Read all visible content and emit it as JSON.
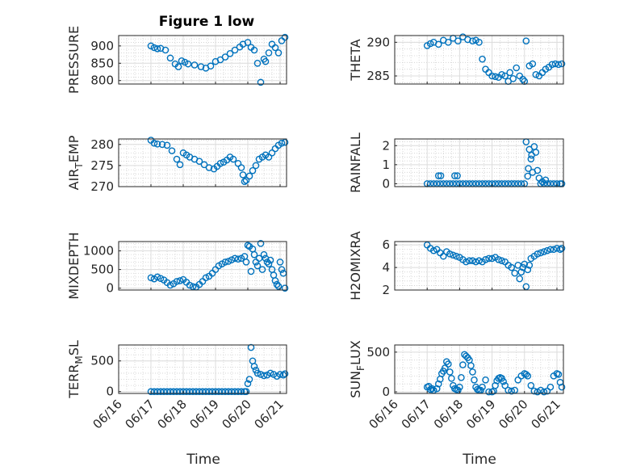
{
  "figure": {
    "title": "Figure 1 low",
    "xlabel": "Time",
    "x_ticks": [
      "06/16",
      "06/17",
      "06/18",
      "06/19",
      "06/20",
      "06/21"
    ],
    "marker_color": "#0072BD",
    "axis_color": "#262626",
    "grid_color": "#d9d9d9"
  },
  "chart_data": [
    {
      "type": "scatter",
      "id": "pressure",
      "ylabel": "PRESSURE",
      "ylim": [
        790,
        930
      ],
      "yticks": [
        800,
        850,
        900
      ],
      "ytick_labels": [
        "800",
        "850",
        "900"
      ],
      "xlim": [
        0,
        5.2
      ],
      "grid": true,
      "x": [
        1.0,
        1.1,
        1.2,
        1.3,
        1.45,
        1.6,
        1.75,
        1.85,
        1.95,
        2.05,
        2.15,
        2.35,
        2.55,
        2.7,
        2.85,
        3.0,
        3.15,
        3.3,
        3.45,
        3.6,
        3.75,
        3.85,
        4.0,
        4.1,
        4.2,
        4.3,
        4.4,
        4.5,
        4.55,
        4.65,
        4.75,
        4.85,
        4.95,
        5.05,
        5.15
      ],
      "y": [
        900,
        895,
        892,
        893,
        888,
        865,
        848,
        840,
        857,
        853,
        848,
        845,
        840,
        836,
        842,
        855,
        860,
        868,
        878,
        888,
        897,
        905,
        910,
        896,
        888,
        850,
        795,
        862,
        855,
        880,
        905,
        895,
        880,
        915,
        925
      ]
    },
    {
      "type": "scatter",
      "id": "theta",
      "ylabel": "THETA",
      "ylim": [
        283.8,
        291
      ],
      "yticks": [
        285,
        290
      ],
      "ytick_labels": [
        "285",
        "290"
      ],
      "xlim": [
        0,
        5.2
      ],
      "grid": true,
      "x": [
        1.0,
        1.1,
        1.2,
        1.35,
        1.5,
        1.65,
        1.8,
        1.95,
        2.1,
        2.25,
        2.4,
        2.5,
        2.6,
        2.7,
        2.8,
        2.9,
        3.0,
        3.1,
        3.2,
        3.3,
        3.4,
        3.5,
        3.55,
        3.65,
        3.75,
        3.85,
        3.95,
        4.0,
        4.05,
        4.15,
        4.25,
        4.35,
        4.45,
        4.55,
        4.65,
        4.75,
        4.85,
        4.95,
        5.05,
        5.15
      ],
      "y": [
        289.5,
        289.8,
        290.0,
        289.7,
        290.3,
        290.0,
        290.6,
        290.2,
        290.8,
        290.4,
        290.2,
        290.3,
        290.0,
        287.5,
        286.0,
        285.5,
        285.0,
        284.9,
        284.8,
        285.2,
        285.0,
        284.2,
        285.5,
        284.6,
        286.2,
        285.0,
        284.5,
        284.2,
        290.2,
        286.5,
        286.8,
        285.2,
        285.0,
        285.5,
        286.0,
        286.3,
        286.7,
        286.8,
        286.7,
        286.8
      ]
    },
    {
      "type": "scatter",
      "id": "air_temp",
      "ylabel": "AIRTEMP",
      "ylabel_parts": [
        "AIR",
        "T",
        "EMP"
      ],
      "ylim": [
        270,
        281.3
      ],
      "yticks": [
        270,
        275,
        280
      ],
      "ytick_labels": [
        "270",
        "275",
        "280"
      ],
      "xlim": [
        0,
        5.2
      ],
      "grid": true,
      "x": [
        1.0,
        1.1,
        1.2,
        1.35,
        1.5,
        1.65,
        1.8,
        1.9,
        2.0,
        2.1,
        2.2,
        2.35,
        2.5,
        2.65,
        2.8,
        2.95,
        3.05,
        3.15,
        3.25,
        3.35,
        3.45,
        3.55,
        3.7,
        3.8,
        3.85,
        3.9,
        3.95,
        4.05,
        4.15,
        4.25,
        4.35,
        4.45,
        4.55,
        4.65,
        4.75,
        4.85,
        4.95,
        5.05,
        5.15
      ],
      "y": [
        281.0,
        280.3,
        280.1,
        280.0,
        279.8,
        278.5,
        276.5,
        275.2,
        278.0,
        277.5,
        277.0,
        276.5,
        276.0,
        275.2,
        274.5,
        274.2,
        274.8,
        275.5,
        275.8,
        276.3,
        277.0,
        276.5,
        275.5,
        274.5,
        272.8,
        271.2,
        271.5,
        272.5,
        273.8,
        275.0,
        276.5,
        277.0,
        277.5,
        277.0,
        278.0,
        279.0,
        279.8,
        280.3,
        280.5
      ]
    },
    {
      "type": "scatter",
      "id": "rainfall",
      "ylabel": "RAINFALL",
      "ylim": [
        -0.15,
        2.35
      ],
      "yticks": [
        0,
        1,
        2
      ],
      "ytick_labels": [
        "0",
        "1",
        "2"
      ],
      "xlim": [
        0,
        5.2
      ],
      "grid": true,
      "x": [
        1.0,
        1.1,
        1.2,
        1.3,
        1.4,
        1.5,
        1.6,
        1.7,
        1.8,
        1.9,
        2.0,
        2.1,
        2.2,
        2.3,
        2.4,
        2.5,
        2.6,
        2.7,
        2.8,
        2.9,
        3.0,
        3.1,
        3.2,
        3.3,
        3.4,
        3.5,
        3.6,
        3.7,
        3.8,
        3.9,
        1.35,
        1.42,
        1.85,
        1.93,
        4.0,
        4.05,
        4.1,
        4.12,
        4.15,
        4.2,
        4.22,
        4.25,
        4.3,
        4.35,
        4.4,
        4.45,
        4.5,
        4.55,
        4.6,
        4.65,
        4.7,
        4.8,
        4.9,
        5.0,
        5.1,
        5.15
      ],
      "y": [
        0,
        0,
        0,
        0,
        0,
        0,
        0,
        0,
        0,
        0,
        0,
        0,
        0,
        0,
        0,
        0,
        0,
        0,
        0,
        0,
        0,
        0,
        0,
        0,
        0,
        0,
        0,
        0,
        0,
        0,
        0.42,
        0.42,
        0.42,
        0.42,
        0,
        2.2,
        0.4,
        0.8,
        1.8,
        1.3,
        1.5,
        0.6,
        1.95,
        1.65,
        0.7,
        0.3,
        0,
        0.1,
        0,
        0.2,
        0,
        0,
        0,
        0,
        0,
        0
      ]
    },
    {
      "type": "scatter",
      "id": "mixdepth",
      "ylabel": "MIXDEPTH",
      "ylim": [
        -50,
        1250
      ],
      "yticks": [
        0,
        500,
        1000
      ],
      "ytick_labels": [
        "0",
        "500",
        "1000"
      ],
      "xlim": [
        0,
        5.2
      ],
      "grid": true,
      "x": [
        1.0,
        1.1,
        1.2,
        1.3,
        1.4,
        1.5,
        1.6,
        1.7,
        1.8,
        1.9,
        2.0,
        2.1,
        2.2,
        2.3,
        2.4,
        2.5,
        2.6,
        2.7,
        2.8,
        2.9,
        3.0,
        3.1,
        3.2,
        3.3,
        3.4,
        3.5,
        3.6,
        3.7,
        3.8,
        3.9,
        3.95,
        4.0,
        4.05,
        4.1,
        4.15,
        4.2,
        4.25,
        4.3,
        4.35,
        4.4,
        4.45,
        4.5,
        4.55,
        4.6,
        4.65,
        4.7,
        4.75,
        4.8,
        4.85,
        4.9,
        4.95,
        5.0,
        5.05,
        5.1,
        5.15
      ],
      "y": [
        280,
        250,
        300,
        260,
        220,
        150,
        80,
        120,
        180,
        200,
        230,
        160,
        80,
        40,
        30,
        100,
        180,
        280,
        320,
        400,
        500,
        600,
        650,
        700,
        720,
        760,
        800,
        780,
        800,
        850,
        700,
        1150,
        1120,
        450,
        1050,
        900,
        700,
        600,
        800,
        1200,
        500,
        900,
        800,
        700,
        650,
        750,
        500,
        350,
        200,
        100,
        50,
        700,
        500,
        400,
        0
      ]
    },
    {
      "type": "scatter",
      "id": "h2omixra",
      "ylabel": "H2OMIXRA",
      "ylim": [
        2,
        6.3
      ],
      "yticks": [
        2,
        4,
        6
      ],
      "ytick_labels": [
        "2",
        "4",
        "6"
      ],
      "xlim": [
        0,
        5.2
      ],
      "grid": true,
      "x": [
        1.0,
        1.1,
        1.2,
        1.3,
        1.4,
        1.5,
        1.6,
        1.7,
        1.8,
        1.9,
        2.0,
        2.1,
        2.2,
        2.3,
        2.4,
        2.5,
        2.6,
        2.7,
        2.8,
        2.9,
        3.0,
        3.1,
        3.2,
        3.3,
        3.4,
        3.5,
        3.6,
        3.7,
        3.8,
        3.85,
        3.9,
        3.95,
        4.0,
        4.05,
        4.1,
        4.15,
        4.2,
        4.3,
        4.4,
        4.5,
        4.6,
        4.7,
        4.8,
        4.9,
        5.0,
        5.1,
        5.15
      ],
      "y": [
        6.0,
        5.7,
        5.5,
        5.6,
        5.3,
        5.0,
        5.4,
        5.2,
        5.1,
        5.0,
        4.9,
        4.7,
        4.5,
        4.6,
        4.6,
        4.5,
        4.6,
        4.5,
        4.7,
        4.8,
        4.8,
        4.9,
        4.7,
        4.6,
        4.5,
        4.2,
        4.0,
        3.5,
        4.2,
        3.0,
        3.6,
        4.0,
        4.3,
        2.3,
        3.8,
        4.2,
        4.8,
        5.0,
        5.2,
        5.3,
        5.4,
        5.5,
        5.6,
        5.6,
        5.7,
        5.6,
        5.7
      ]
    },
    {
      "type": "scatter",
      "id": "terr_msl",
      "ylabel": "TERRMSL",
      "ylabel_parts": [
        "TERR",
        "M",
        "SL"
      ],
      "ylim": [
        -30,
        760
      ],
      "yticks": [
        0,
        500
      ],
      "ytick_labels": [
        "0",
        "500"
      ],
      "xlim": [
        0,
        5.2
      ],
      "grid": true,
      "x": [
        1.0,
        1.1,
        1.2,
        1.3,
        1.4,
        1.5,
        1.6,
        1.7,
        1.8,
        1.9,
        2.0,
        2.1,
        2.2,
        2.3,
        2.4,
        2.5,
        2.6,
        2.7,
        2.8,
        2.9,
        3.0,
        3.1,
        3.2,
        3.3,
        3.4,
        3.5,
        3.6,
        3.7,
        3.8,
        3.9,
        3.95,
        4.0,
        4.05,
        4.1,
        4.15,
        4.2,
        4.25,
        4.3,
        4.4,
        4.5,
        4.6,
        4.7,
        4.8,
        4.9,
        5.0,
        5.1,
        5.15
      ],
      "y": [
        0,
        0,
        0,
        0,
        0,
        0,
        0,
        0,
        0,
        0,
        0,
        0,
        0,
        0,
        0,
        0,
        0,
        0,
        0,
        0,
        0,
        0,
        0,
        0,
        0,
        0,
        0,
        0,
        0,
        0,
        0,
        130,
        200,
        720,
        500,
        410,
        350,
        300,
        280,
        260,
        270,
        300,
        280,
        250,
        280,
        270,
        290
      ]
    },
    {
      "type": "scatter",
      "id": "sun_flux",
      "ylabel": "SUNFLUX",
      "ylabel_parts": [
        "SUN",
        "F",
        "LUX"
      ],
      "ylim": [
        -20,
        590
      ],
      "yticks": [
        0,
        500
      ],
      "ytick_labels": [
        "0",
        "500"
      ],
      "xlim": [
        0,
        5.2
      ],
      "grid": true,
      "x": [
        1.0,
        1.05,
        1.1,
        1.15,
        1.2,
        1.3,
        1.35,
        1.4,
        1.45,
        1.5,
        1.55,
        1.6,
        1.65,
        1.7,
        1.75,
        1.8,
        1.85,
        1.9,
        1.95,
        2.0,
        2.05,
        2.1,
        2.15,
        2.2,
        2.25,
        2.3,
        2.35,
        2.4,
        2.45,
        2.5,
        2.55,
        2.6,
        2.65,
        2.7,
        2.8,
        2.9,
        3.0,
        3.05,
        3.1,
        3.15,
        3.2,
        3.25,
        3.3,
        3.35,
        3.4,
        3.5,
        3.6,
        3.7,
        3.8,
        3.9,
        4.0,
        4.05,
        4.1,
        4.2,
        4.3,
        4.4,
        4.5,
        4.6,
        4.7,
        4.8,
        4.9,
        5.0,
        5.05,
        5.1,
        5.15
      ],
      "y": [
        60,
        70,
        30,
        40,
        20,
        40,
        100,
        160,
        230,
        260,
        300,
        380,
        350,
        250,
        170,
        80,
        40,
        30,
        20,
        60,
        180,
        340,
        470,
        450,
        430,
        400,
        330,
        250,
        150,
        60,
        30,
        20,
        20,
        60,
        150,
        0,
        0,
        10,
        80,
        140,
        170,
        180,
        170,
        130,
        80,
        20,
        10,
        20,
        150,
        200,
        230,
        220,
        200,
        80,
        10,
        0,
        20,
        0,
        10,
        60,
        200,
        230,
        220,
        120,
        60
      ]
    }
  ]
}
